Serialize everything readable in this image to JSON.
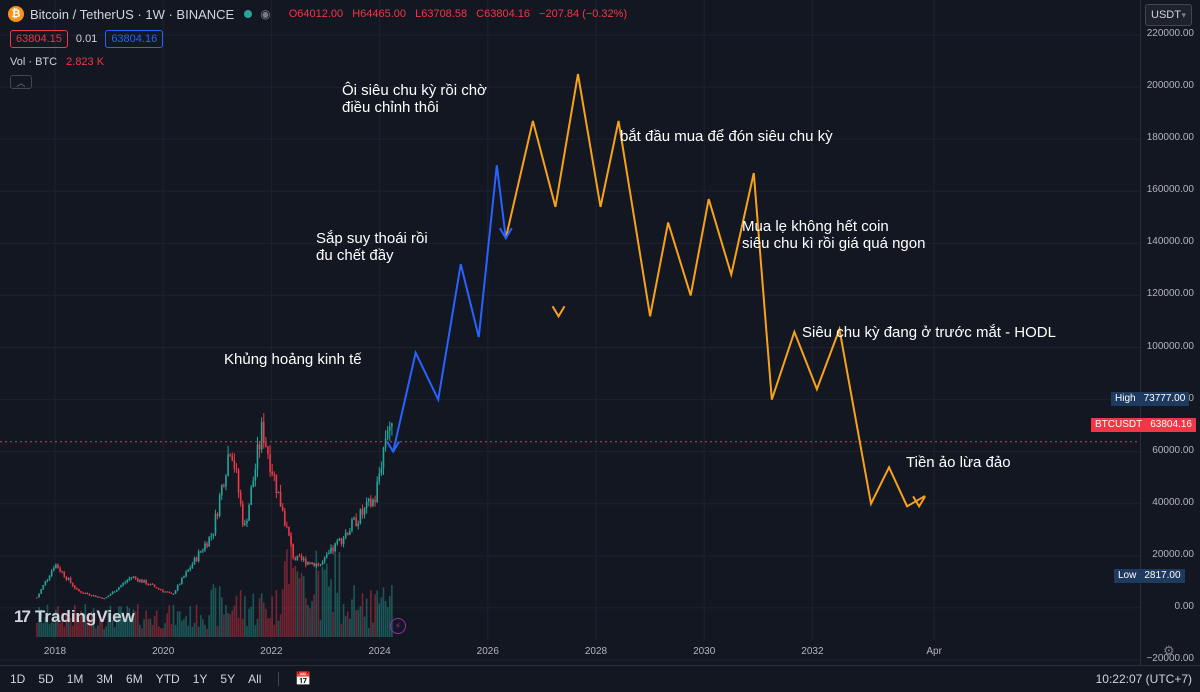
{
  "header": {
    "symbol": "Bitcoin / TetherUS · 1W · BINANCE",
    "coin_glyph": "₿",
    "open": "O64012.00",
    "high": "H64465.00",
    "low": "L63708.58",
    "close": "C63804.16",
    "change": "−207.84 (−0.32%)"
  },
  "quote": {
    "bid": "63804.15",
    "spread": "0.01",
    "ask": "63804.16"
  },
  "volume": {
    "label": "Vol · BTC",
    "value": "2.823 K"
  },
  "currency_button": {
    "label": "USDT",
    "icon": "chevron-down-icon"
  },
  "price_scale": {
    "ticks": [
      "220000.00",
      "200000.00",
      "180000.00",
      "160000.00",
      "140000.00",
      "120000.00",
      "100000.00",
      "80000.00",
      "60000.00",
      "40000.00",
      "20000.00",
      "0.00",
      "−20000.00"
    ],
    "high_tag": {
      "label": "High",
      "value": "73777.00"
    },
    "current_tag": {
      "label": "BTCUSDT",
      "value": "63804.16"
    },
    "low_tag": {
      "label": "Low",
      "value": "2817.00"
    }
  },
  "time_axis": [
    "2018",
    "2020",
    "2022",
    "2024",
    "2026",
    "2028",
    "2030",
    "2032",
    "Apr"
  ],
  "annotations": [
    "Ôi siêu chu kỳ rồi chờ\nđiều chỉnh thôi",
    "bắt đầu mua để đón siêu chu kỳ",
    "Sắp suy thoái rồi\nđu chết đầy",
    "Mua lẹ không hết coin\nsiêu chu kì rồi giá quá ngon",
    "Khủng hoảng kinh tế",
    "Siêu chu kỳ đang ở trước mắt - HODL",
    "Tiền ảo lừa đảo"
  ],
  "logo": {
    "text": "TradingView"
  },
  "bottom_bar": {
    "timeframes": [
      "1D",
      "5D",
      "1M",
      "3M",
      "6M",
      "YTD",
      "1Y",
      "5Y",
      "All"
    ],
    "clock": "10:22:07 (UTC+7)"
  },
  "colors": {
    "background": "#131722",
    "projection_blue": "#2962ff",
    "projection_orange": "#f7a21b",
    "up": "#26a69a",
    "down": "#f23645"
  },
  "chart_data": {
    "type": "candlestick-with-projection",
    "y_unit": "USDT",
    "ylim": [
      -20000,
      220000
    ],
    "historical_close_approx": {
      "x": [
        "2017-09",
        "2018-01",
        "2018-06",
        "2018-12",
        "2019-06",
        "2020-03",
        "2020-12",
        "2021-04",
        "2021-07",
        "2021-11",
        "2022-06",
        "2022-12",
        "2023-06",
        "2023-12",
        "2024-03",
        "2024-04"
      ],
      "y": [
        4000,
        17000,
        6500,
        3500,
        12000,
        5000,
        29000,
        64000,
        30000,
        69000,
        19000,
        16500,
        30000,
        42000,
        73000,
        63800
      ]
    },
    "projection_blue": {
      "x": [
        "2024-04",
        "2024-09",
        "2025-02",
        "2025-07",
        "2025-11",
        "2026-03",
        "2026-05"
      ],
      "y": [
        60000,
        98000,
        80000,
        132000,
        104000,
        170000,
        142000
      ]
    },
    "projection_orange": {
      "x": [
        "2026-05",
        "2026-11",
        "2027-04",
        "2027-09",
        "2028-02",
        "2028-06",
        "2029-01",
        "2029-05",
        "2029-10",
        "2030-02",
        "2030-07",
        "2030-12",
        "2031-04",
        "2031-09",
        "2032-02",
        "2032-07",
        "2033-02",
        "2033-06",
        "2033-10",
        "2034-02"
      ],
      "y": [
        142000,
        187000,
        154000,
        205000,
        154000,
        187000,
        112000,
        148000,
        120000,
        157000,
        128000,
        167000,
        80000,
        106000,
        84000,
        107000,
        40000,
        54000,
        39000,
        43000
      ]
    }
  }
}
